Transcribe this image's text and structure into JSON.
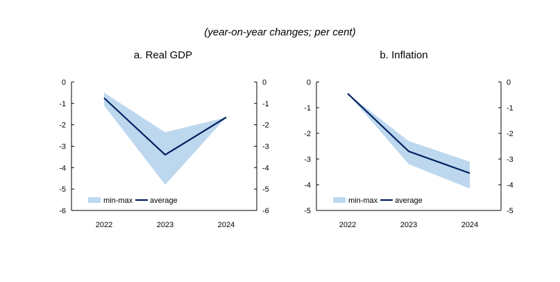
{
  "subtitle": "(year-on-year changes; per cent)",
  "colors": {
    "band": "#bdd7ee",
    "line": "#002060",
    "axis": "#000000"
  },
  "chart_data": [
    {
      "type": "area",
      "title": "a.  Real GDP",
      "categories": [
        "2022",
        "2023",
        "2024"
      ],
      "ylim": [
        -6,
        0
      ],
      "yticks": [
        "0",
        "-1",
        "-2",
        "-3",
        "-4",
        "-5",
        "-6"
      ],
      "secondary_axis": true,
      "grid": false,
      "legend_position": "bottom-left inside",
      "series": [
        {
          "name": "min-max",
          "kind": "band",
          "min": [
            -1.1,
            -4.8,
            -1.65
          ],
          "max": [
            -0.5,
            -2.35,
            -1.65
          ]
        },
        {
          "name": "average",
          "kind": "line",
          "values": [
            -0.75,
            -3.4,
            -1.65
          ]
        }
      ]
    },
    {
      "type": "area",
      "title": "b.  Inflation",
      "categories": [
        "2022",
        "2023",
        "2024"
      ],
      "ylim": [
        -5,
        0
      ],
      "yticks": [
        "0",
        "-1",
        "-2",
        "-3",
        "-4",
        "-5"
      ],
      "secondary_axis": true,
      "grid": false,
      "legend_position": "bottom-left inside",
      "series": [
        {
          "name": "min-max",
          "kind": "band",
          "min": [
            -0.45,
            -3.2,
            -4.15
          ],
          "max": [
            -0.45,
            -2.3,
            -3.1
          ]
        },
        {
          "name": "average",
          "kind": "line",
          "values": [
            -0.45,
            -2.7,
            -3.55
          ]
        }
      ]
    }
  ]
}
